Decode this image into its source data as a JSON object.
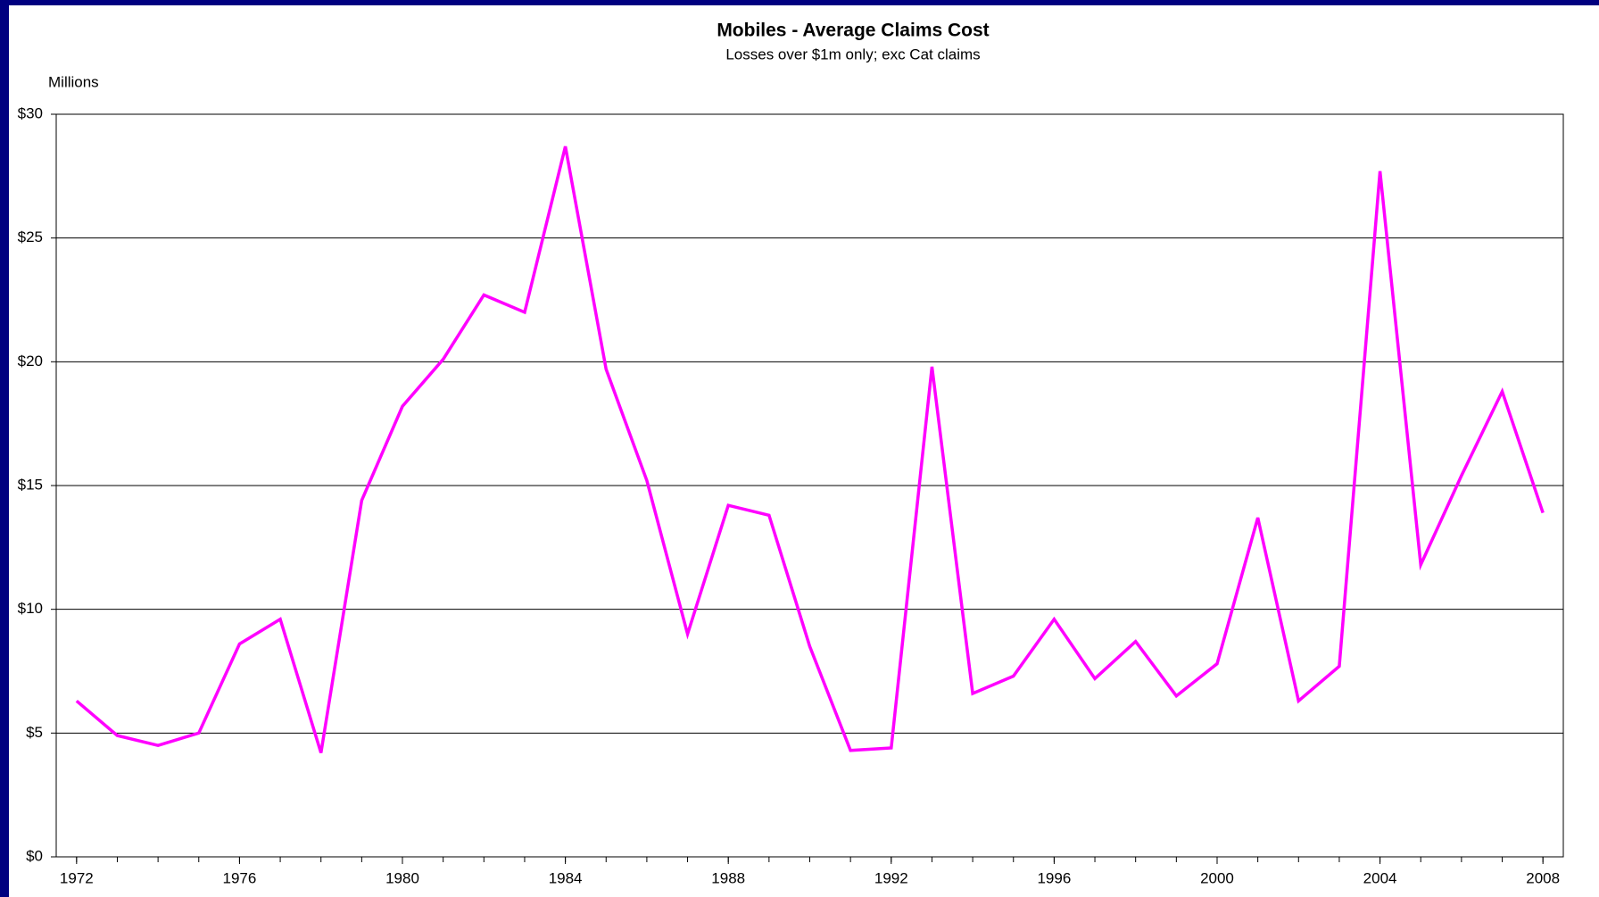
{
  "chart_data": {
    "type": "line",
    "title": "Mobiles - Average Claims Cost",
    "subtitle": "Losses over $1m only; exc Cat claims",
    "y_axis_label": "Millions",
    "x": [
      1972,
      1973,
      1974,
      1975,
      1976,
      1977,
      1978,
      1979,
      1980,
      1981,
      1982,
      1983,
      1984,
      1985,
      1986,
      1987,
      1988,
      1989,
      1990,
      1991,
      1992,
      1993,
      1994,
      1995,
      1996,
      1997,
      1998,
      1999,
      2000,
      2001,
      2002,
      2003,
      2004,
      2005,
      2006,
      2007,
      2008
    ],
    "series": [
      {
        "name": "Average Claims Cost",
        "color": "#ff00ff",
        "values": [
          6.3,
          4.9,
          4.5,
          5.0,
          8.6,
          9.6,
          4.2,
          14.4,
          18.2,
          20.1,
          22.7,
          22.0,
          28.7,
          19.7,
          15.2,
          9.0,
          14.2,
          13.8,
          8.5,
          4.3,
          4.4,
          19.8,
          6.6,
          7.3,
          9.6,
          7.2,
          8.7,
          6.5,
          7.8,
          13.7,
          6.3,
          7.7,
          27.7,
          11.8,
          15.4,
          18.8,
          13.9
        ]
      }
    ],
    "xlim": [
      1971.5,
      2008.5
    ],
    "xticks": [
      1972,
      1976,
      1980,
      1984,
      1988,
      1992,
      1996,
      2000,
      2004,
      2008
    ],
    "ylim": [
      0,
      30
    ],
    "yticks": [
      {
        "value": 0,
        "label": "$0"
      },
      {
        "value": 5,
        "label": "$5"
      },
      {
        "value": 10,
        "label": "$10"
      },
      {
        "value": 15,
        "label": "$15"
      },
      {
        "value": 20,
        "label": "$20"
      },
      {
        "value": 25,
        "label": "$25"
      },
      {
        "value": 30,
        "label": "$30"
      }
    ],
    "grid": true
  }
}
